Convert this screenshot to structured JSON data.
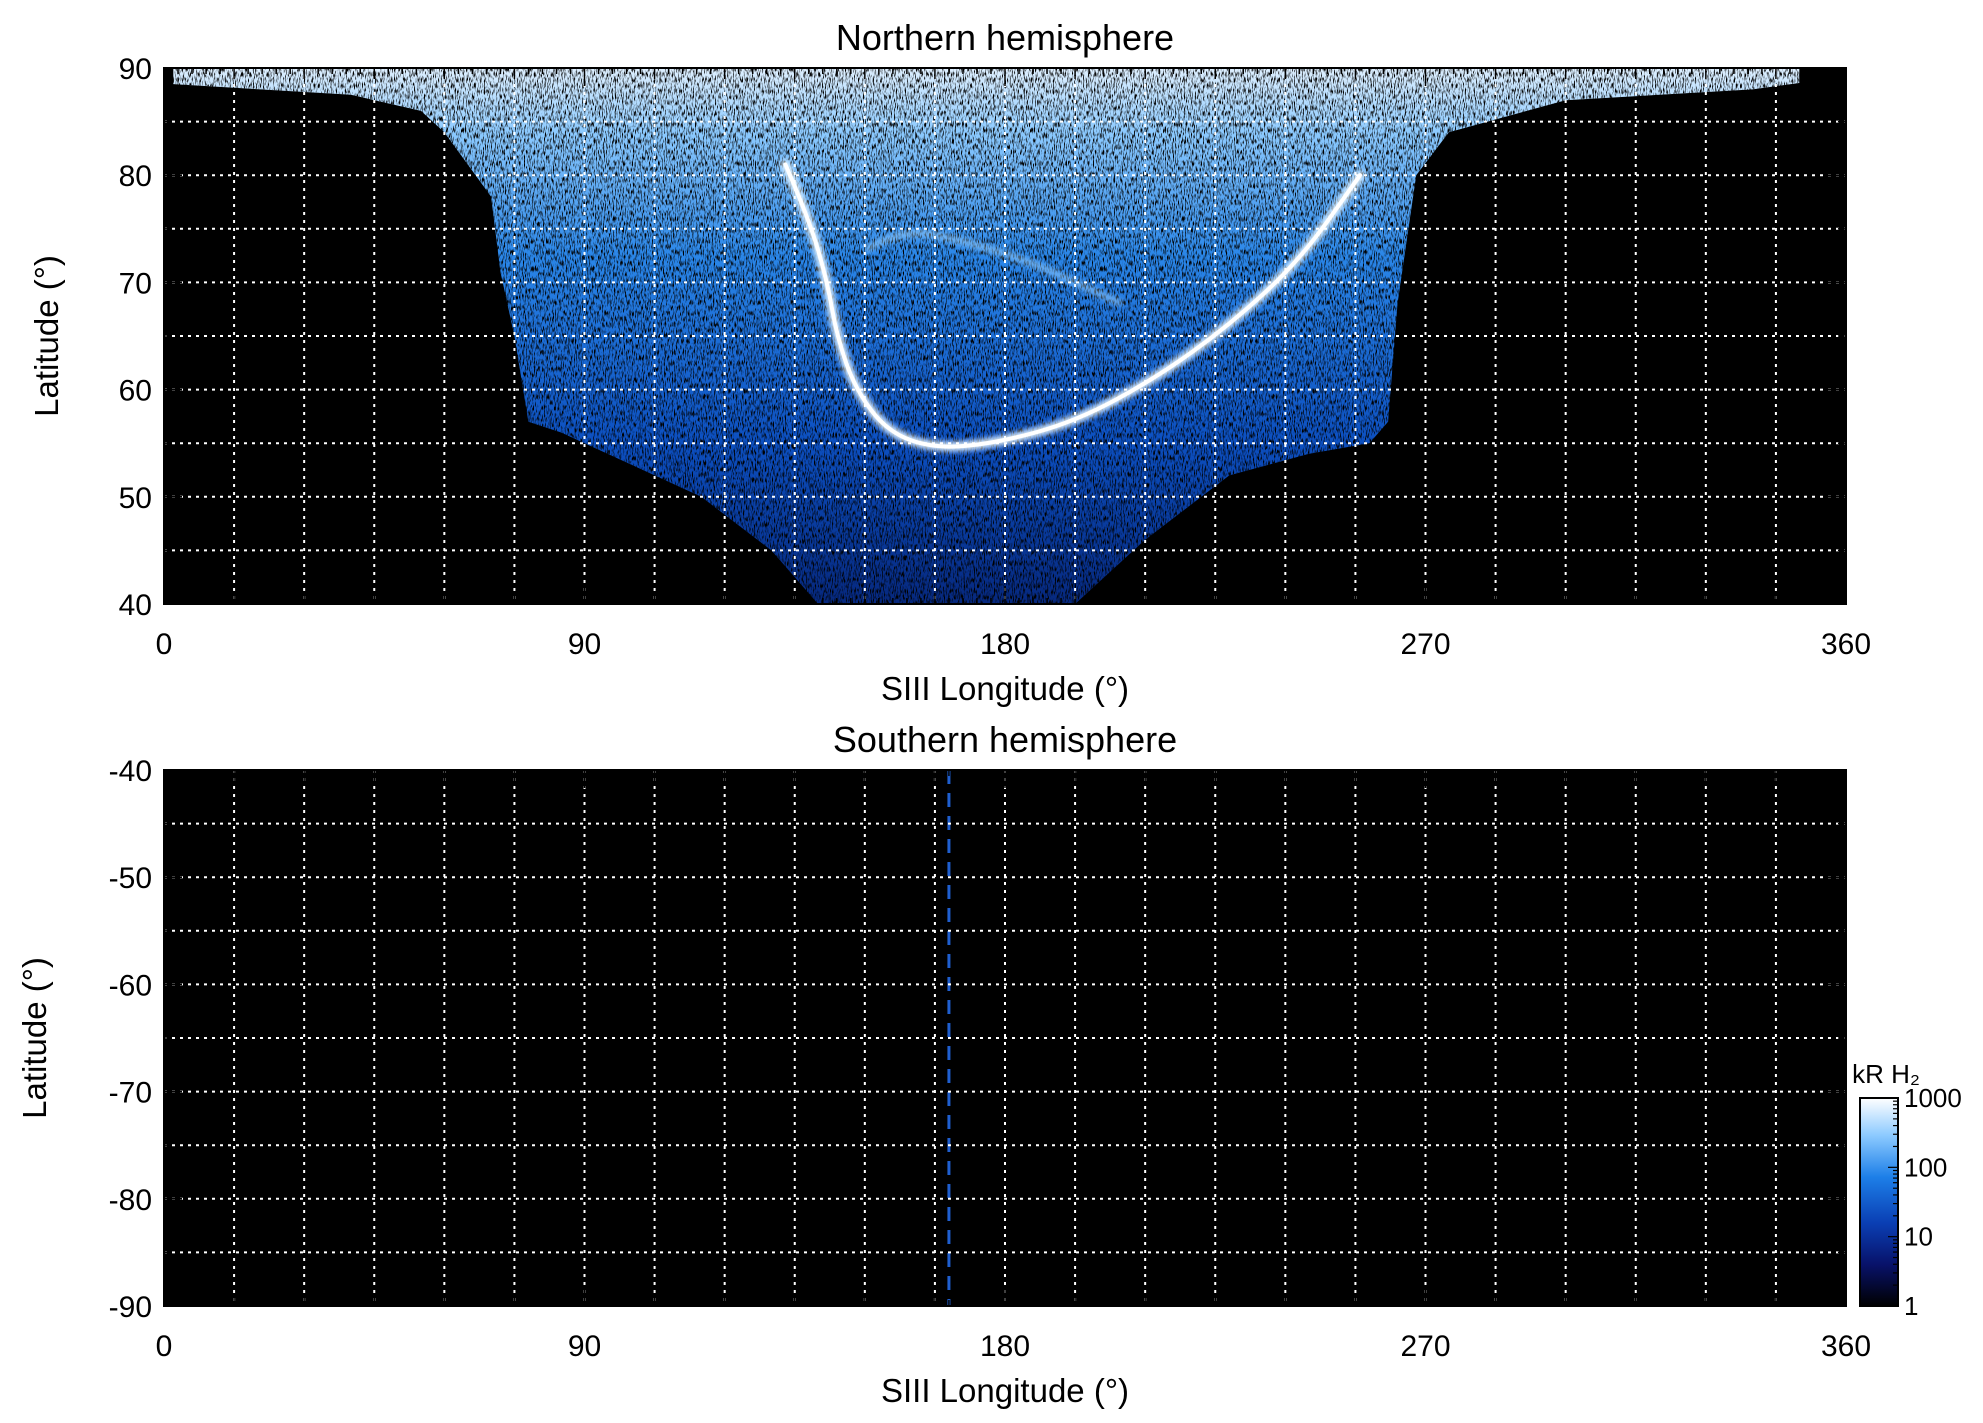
{
  "chart_data": [
    {
      "type": "heatmap",
      "title": "Northern hemisphere",
      "xlabel": "SIII Longitude (°)",
      "ylabel": "Latitude (°)",
      "xlim": [
        0,
        360
      ],
      "ylim": [
        40,
        90
      ],
      "xticks": [
        "0",
        "90",
        "180",
        "270",
        "360"
      ],
      "yticks": [
        "40",
        "50",
        "60",
        "70",
        "80",
        "90"
      ],
      "grid": true,
      "background_color": "#000000",
      "emission_region": {
        "boundary": [
          [
            2,
            88.5
          ],
          [
            40,
            87.5
          ],
          [
            55,
            86
          ],
          [
            60,
            84
          ],
          [
            70,
            78
          ],
          [
            72,
            71
          ],
          [
            75,
            65
          ],
          [
            78,
            57
          ],
          [
            85,
            56
          ],
          [
            100,
            53
          ],
          [
            115,
            50
          ],
          [
            130,
            45
          ],
          [
            140,
            40
          ],
          [
            195,
            40
          ],
          [
            210,
            46
          ],
          [
            228,
            52
          ],
          [
            245,
            54
          ],
          [
            258,
            55
          ],
          [
            262,
            57
          ],
          [
            264,
            68
          ],
          [
            268,
            80
          ],
          [
            275,
            84
          ],
          [
            300,
            87
          ],
          [
            340,
            88
          ],
          [
            350,
            88.6
          ]
        ],
        "main_oval": [
          [
            133,
            81
          ],
          [
            138,
            76
          ],
          [
            142,
            70
          ],
          [
            144,
            65
          ],
          [
            148,
            60
          ],
          [
            155,
            56
          ],
          [
            165,
            54.5
          ],
          [
            178,
            55
          ],
          [
            195,
            57
          ],
          [
            212,
            61
          ],
          [
            228,
            66
          ],
          [
            243,
            72
          ],
          [
            256,
            80
          ]
        ],
        "inner_features": [
          [
            150,
            73
          ],
          [
            158,
            75
          ],
          [
            170,
            74
          ],
          [
            185,
            72
          ],
          [
            195,
            70
          ],
          [
            205,
            68
          ]
        ]
      }
    },
    {
      "type": "heatmap",
      "title": "Southern hemisphere",
      "xlabel": "SIII Longitude (°)",
      "ylabel": "Latitude (°)",
      "xlim": [
        0,
        360
      ],
      "ylim": [
        -90,
        -40
      ],
      "xticks": [
        "0",
        "90",
        "180",
        "270",
        "360"
      ],
      "yticks": [
        "-40",
        "-50",
        "-60",
        "-70",
        "-80",
        "-90"
      ],
      "grid": true,
      "background_color": "#000000",
      "reference_line": {
        "x": 168,
        "style": "dashed",
        "color": "#1f5fd0"
      }
    }
  ],
  "colorbar": {
    "title": "kR H₂",
    "scale": "log",
    "range": [
      1,
      1000
    ],
    "ticks": [
      "1",
      "10",
      "100",
      "1000"
    ],
    "colors": [
      "#000000",
      "#08126a",
      "#0a3fb4",
      "#1d7fe8",
      "#8ccaff",
      "#ffffff"
    ]
  }
}
